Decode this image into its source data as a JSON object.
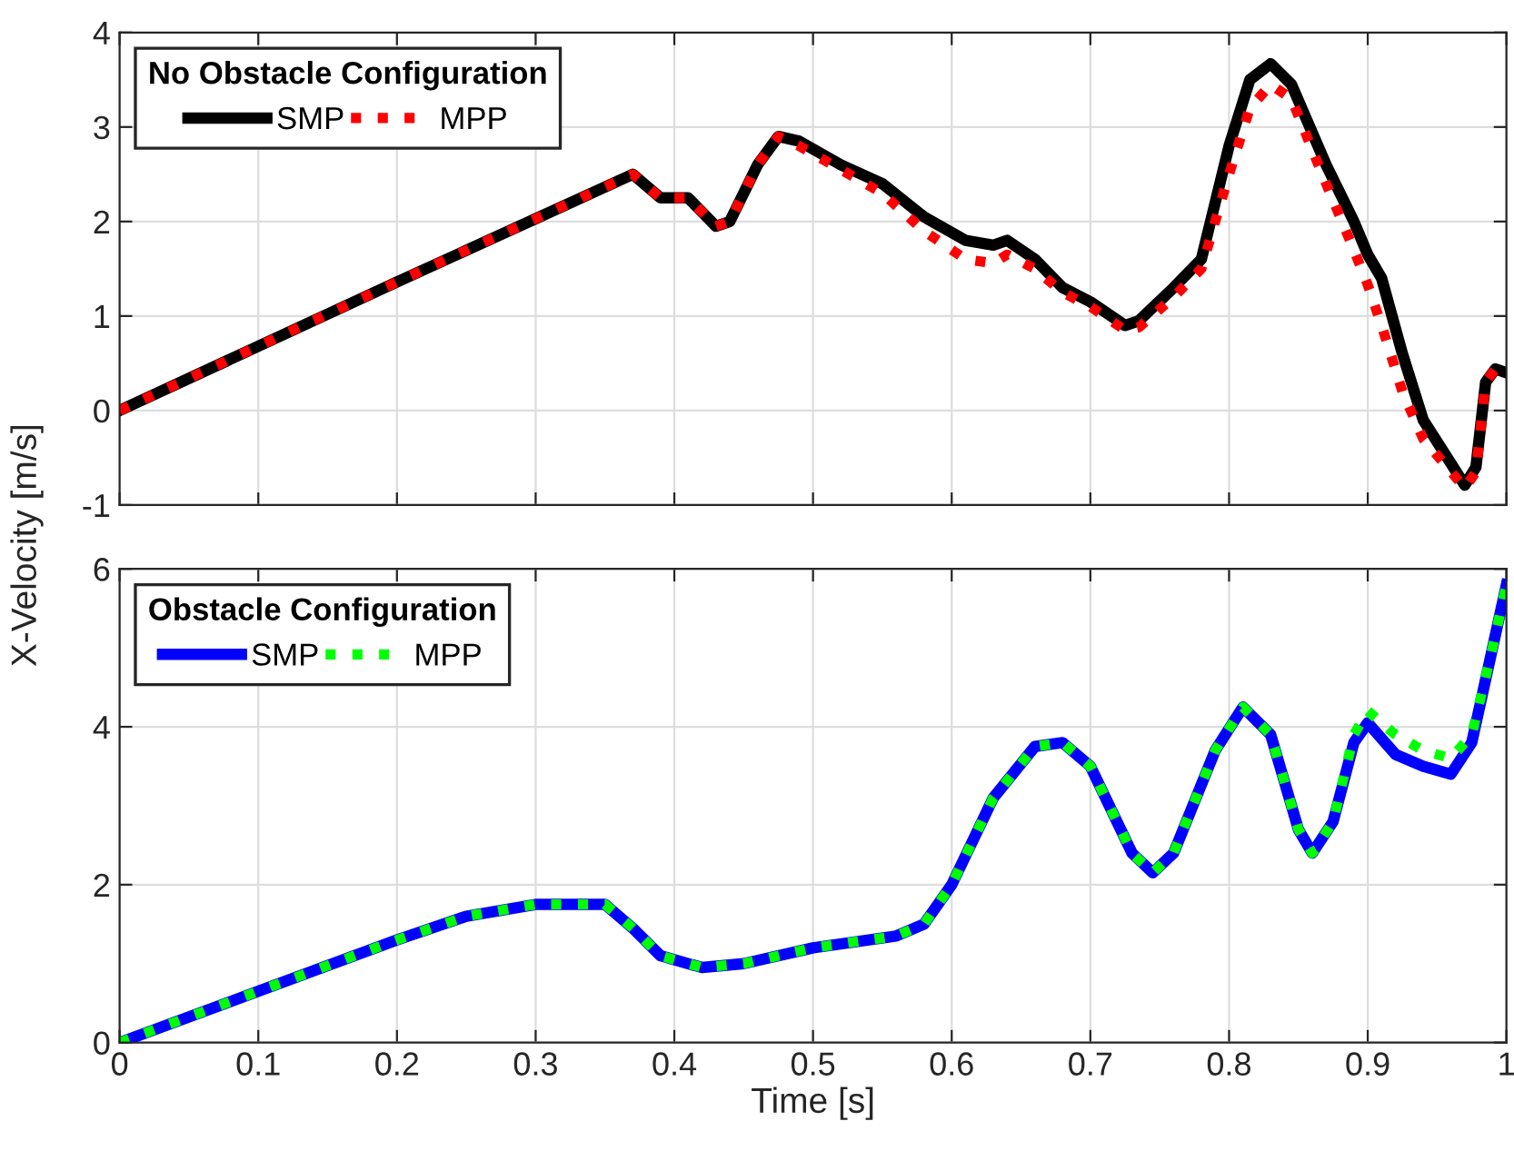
{
  "chart_data": [
    {
      "type": "line",
      "legend_title": "No Obstacle Configuration",
      "legend": "top left",
      "grid": true,
      "tick_labels": "y",
      "x": [
        0,
        0.1,
        0.2,
        0.3,
        0.37,
        0.39,
        0.41,
        0.43,
        0.44,
        0.46,
        0.475,
        0.49,
        0.52,
        0.55,
        0.58,
        0.61,
        0.63,
        0.64,
        0.66,
        0.68,
        0.7,
        0.725,
        0.735,
        0.76,
        0.78,
        0.8,
        0.815,
        0.83,
        0.845,
        0.87,
        0.89,
        0.9,
        0.91,
        0.925,
        0.94,
        0.97,
        0.978,
        0.985,
        0.992,
        1.0
      ],
      "series": [
        {
          "name": "SMP",
          "color": "#000000",
          "line_style": "solid",
          "values": [
            0,
            0.68,
            1.36,
            2.03,
            2.5,
            2.25,
            2.25,
            1.95,
            2.0,
            2.6,
            2.9,
            2.85,
            2.6,
            2.4,
            2.05,
            1.8,
            1.75,
            1.8,
            1.6,
            1.3,
            1.15,
            0.9,
            0.95,
            1.3,
            1.6,
            2.8,
            3.5,
            3.67,
            3.45,
            2.6,
            2.0,
            1.65,
            1.4,
            0.6,
            -0.1,
            -0.79,
            -0.6,
            0.3,
            0.44,
            0.4
          ]
        },
        {
          "name": "MPP",
          "color": "#ff0000",
          "line_style": "dotted",
          "values": [
            0,
            0.68,
            1.36,
            2.03,
            2.5,
            2.25,
            2.25,
            1.95,
            2.0,
            2.6,
            2.9,
            2.8,
            2.55,
            2.3,
            1.9,
            1.6,
            1.56,
            1.65,
            1.5,
            1.25,
            1.1,
            0.85,
            0.88,
            1.2,
            1.5,
            2.5,
            3.2,
            3.45,
            3.3,
            2.4,
            1.7,
            1.33,
            0.9,
            0.2,
            -0.3,
            -0.82,
            -0.65,
            0.3,
            0.44,
            0.4
          ]
        }
      ],
      "xlim": [
        0,
        1
      ],
      "ylim": [
        -1,
        4
      ],
      "xticks": [
        0,
        0.1,
        0.2,
        0.3,
        0.4,
        0.5,
        0.6,
        0.7,
        0.8,
        0.9,
        1
      ],
      "yticks": [
        -1,
        0,
        1,
        2,
        3,
        4
      ]
    },
    {
      "type": "line",
      "legend_title": "Obstacle Configuration",
      "legend": "top left",
      "grid": true,
      "xlabel": "Time [s]",
      "ylabel": "X-Velocity [m/s]",
      "x": [
        0,
        0.1,
        0.2,
        0.25,
        0.3,
        0.35,
        0.37,
        0.39,
        0.42,
        0.45,
        0.5,
        0.56,
        0.58,
        0.6,
        0.63,
        0.66,
        0.68,
        0.7,
        0.73,
        0.745,
        0.76,
        0.79,
        0.81,
        0.83,
        0.85,
        0.86,
        0.875,
        0.89,
        0.9,
        0.92,
        0.94,
        0.96,
        0.975,
        0.99,
        1.0
      ],
      "series": [
        {
          "name": "SMP",
          "color": "#0000ff",
          "line_style": "solid",
          "values": [
            0,
            0.65,
            1.3,
            1.6,
            1.75,
            1.75,
            1.45,
            1.1,
            0.95,
            1.0,
            1.2,
            1.35,
            1.5,
            2.0,
            3.1,
            3.75,
            3.8,
            3.5,
            2.4,
            2.15,
            2.4,
            3.7,
            4.25,
            3.9,
            2.7,
            2.4,
            2.8,
            3.8,
            4.05,
            3.65,
            3.5,
            3.4,
            3.8,
            5.0,
            5.8
          ]
        },
        {
          "name": "MPP",
          "color": "#00ff00",
          "line_style": "dotted",
          "values": [
            0,
            0.65,
            1.3,
            1.6,
            1.75,
            1.75,
            1.45,
            1.1,
            0.95,
            1.0,
            1.2,
            1.35,
            1.5,
            2.0,
            3.1,
            3.75,
            3.8,
            3.5,
            2.4,
            2.15,
            2.4,
            3.7,
            4.25,
            3.9,
            2.7,
            2.4,
            2.8,
            3.9,
            4.2,
            3.9,
            3.7,
            3.6,
            3.9,
            5.0,
            5.8
          ]
        }
      ],
      "xlim": [
        0,
        1
      ],
      "ylim": [
        0,
        6
      ],
      "xticks": [
        0,
        0.1,
        0.2,
        0.3,
        0.4,
        0.5,
        0.6,
        0.7,
        0.8,
        0.9,
        1
      ],
      "yticks": [
        0,
        2,
        4,
        6
      ]
    }
  ]
}
